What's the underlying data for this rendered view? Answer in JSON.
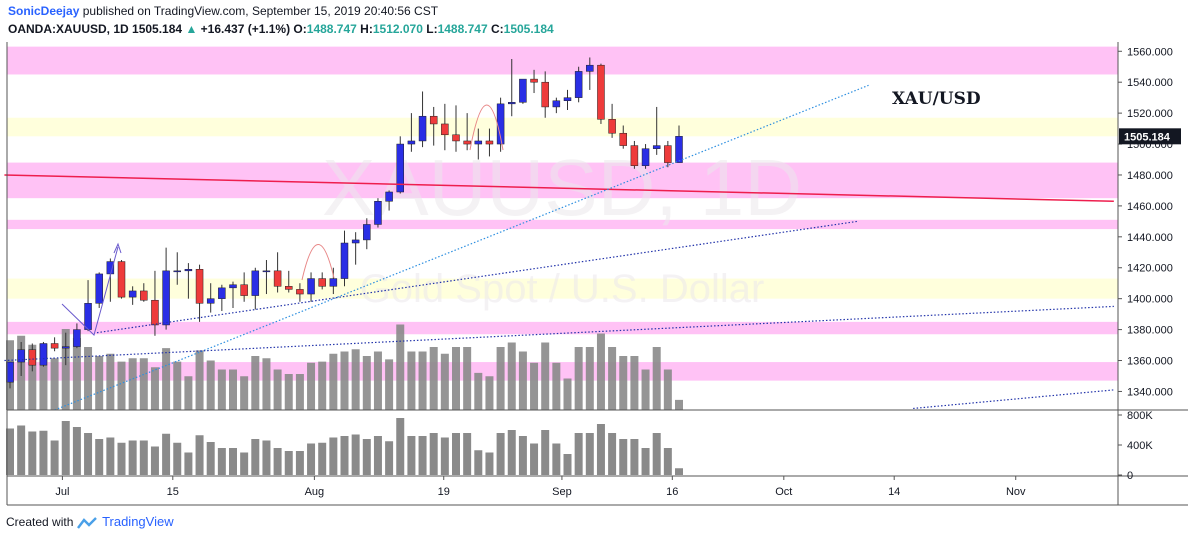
{
  "header": {
    "author": "SonicDeejay",
    "published": "published on TradingView.com, September 15, 2019 20:40:56 CST",
    "symbol": "OANDA:XAUUSD, 1D",
    "last": "1505.184",
    "change": "+16.437 (+1.1%)",
    "o_label": "O:",
    "o_value": "1488.747",
    "h_label": "H:",
    "h_value": "1512.070",
    "l_label": "L:",
    "l_value": "1488.747",
    "c_label": "C:",
    "c_value": "1505.184"
  },
  "footer": {
    "created_with": "Created with",
    "brand": "TradingView"
  },
  "chart_data": {
    "type": "candlestick",
    "title": "XAU/USD",
    "watermark_symbol": "XAUUSD, 1D",
    "watermark_name": "Gold Spot / U.S. Dollar",
    "current_price_label": "1505.184",
    "price_ticks": [
      "1560.000",
      "1540.000",
      "1520.000",
      "1500.000",
      "1480.000",
      "1460.000",
      "1440.000",
      "1420.000",
      "1400.000",
      "1380.000",
      "1360.000",
      "1340.000"
    ],
    "volume_ticks": [
      "800K",
      "400K",
      "0"
    ],
    "x_ticks": [
      {
        "label": "Jul",
        "i": 4.7
      },
      {
        "label": "15",
        "i": 14.6
      },
      {
        "label": "Aug",
        "i": 27.3
      },
      {
        "label": "19",
        "i": 38.9
      },
      {
        "label": "Sep",
        "i": 49.5
      },
      {
        "label": "16",
        "i": 59.4
      },
      {
        "label": "Oct",
        "i": 69.4
      },
      {
        "label": "14",
        "i": 79.3
      },
      {
        "label": "Nov",
        "i": 90.2
      }
    ],
    "ylim": [
      1328,
      1566
    ],
    "volume_max": 800000,
    "colors": {
      "up": "#2a2ee5",
      "down": "#ee3b3b",
      "volume": "#8a8a8a",
      "pink_zone": "#ffc2f5",
      "yellow_zone": "#ffffdc",
      "red_line": "#ee1e4e",
      "blue_dotted": "#2d8fe0",
      "navy_dotted": "#2233aa",
      "price_badge": "#131722"
    },
    "zones": [
      {
        "type": "pink",
        "from": 1545,
        "to": 1563
      },
      {
        "type": "yellow",
        "from": 1505,
        "to": 1517
      },
      {
        "type": "pink",
        "from": 1465,
        "to": 1488
      },
      {
        "type": "pink",
        "from": 1445,
        "to": 1451
      },
      {
        "type": "yellow",
        "from": 1400,
        "to": 1413
      },
      {
        "type": "pink",
        "from": 1377,
        "to": 1385
      },
      {
        "type": "pink",
        "from": 1347,
        "to": 1359
      }
    ],
    "trend_lines": [
      {
        "style": "solid",
        "color": "red",
        "from": {
          "i": -0.5,
          "p": 1480
        },
        "to": {
          "i": 99,
          "p": 1463
        }
      },
      {
        "style": "dotted",
        "color": "blue",
        "from": {
          "i": 4,
          "p": 1328
        },
        "to": {
          "i": 77,
          "p": 1538
        }
      },
      {
        "style": "dotted",
        "color": "navy",
        "from": {
          "i": 7.8,
          "p": 1378
        },
        "to": {
          "i": 76,
          "p": 1450
        }
      },
      {
        "style": "dotted",
        "color": "navy",
        "from": {
          "i": -0.5,
          "p": 1360
        },
        "to": {
          "i": 99,
          "p": 1395
        }
      },
      {
        "style": "dotted",
        "color": "navy",
        "from": {
          "i": 81,
          "p": 1329
        },
        "to": {
          "i": 99,
          "p": 1341
        }
      }
    ],
    "series": [
      {
        "date": "2019-06-24",
        "o": 1346,
        "h": 1359,
        "l": 1342,
        "c": 1359,
        "v": 620000
      },
      {
        "date": "2019-06-25",
        "o": 1359,
        "h": 1372,
        "l": 1350,
        "c": 1367,
        "v": 660000
      },
      {
        "date": "2019-06-26",
        "o": 1367,
        "h": 1371,
        "l": 1353,
        "c": 1357,
        "v": 580000
      },
      {
        "date": "2019-06-27",
        "o": 1357,
        "h": 1372,
        "l": 1356,
        "c": 1371,
        "v": 590000
      },
      {
        "date": "2019-06-28",
        "o": 1371,
        "h": 1375,
        "l": 1366,
        "c": 1368,
        "v": 460000
      },
      {
        "date": "2019-07-01",
        "o": 1368,
        "h": 1378,
        "l": 1357,
        "c": 1369,
        "v": 720000
      },
      {
        "date": "2019-07-02",
        "o": 1369,
        "h": 1384,
        "l": 1368,
        "c": 1380,
        "v": 640000
      },
      {
        "date": "2019-07-03",
        "o": 1380,
        "h": 1412,
        "l": 1379,
        "c": 1397,
        "v": 560000
      },
      {
        "date": "2019-07-04",
        "o": 1397,
        "h": 1417,
        "l": 1394,
        "c": 1416,
        "v": 480000
      },
      {
        "date": "2019-07-05",
        "o": 1416,
        "h": 1426,
        "l": 1398,
        "c": 1424,
        "v": 500000
      },
      {
        "date": "2019-07-08",
        "o": 1424,
        "h": 1425,
        "l": 1400,
        "c": 1401,
        "v": 430000
      },
      {
        "date": "2019-07-09",
        "o": 1401,
        "h": 1408,
        "l": 1396,
        "c": 1405,
        "v": 460000
      },
      {
        "date": "2019-07-10",
        "o": 1405,
        "h": 1410,
        "l": 1398,
        "c": 1399,
        "v": 460000
      },
      {
        "date": "2019-07-11",
        "o": 1399,
        "h": 1418,
        "l": 1376,
        "c": 1383,
        "v": 380000
      },
      {
        "date": "2019-07-12",
        "o": 1383,
        "h": 1433,
        "l": 1380,
        "c": 1418,
        "v": 550000
      },
      {
        "date": "2019-07-15",
        "o": 1418,
        "h": 1430,
        "l": 1409,
        "c": 1418,
        "v": 430000
      },
      {
        "date": "2019-07-16",
        "o": 1418,
        "h": 1423,
        "l": 1400,
        "c": 1419,
        "v": 300000
      },
      {
        "date": "2019-07-17",
        "o": 1419,
        "h": 1422,
        "l": 1385,
        "c": 1397,
        "v": 530000
      },
      {
        "date": "2019-07-18",
        "o": 1397,
        "h": 1410,
        "l": 1391,
        "c": 1400,
        "v": 440000
      },
      {
        "date": "2019-07-19",
        "o": 1400,
        "h": 1409,
        "l": 1392,
        "c": 1407,
        "v": 360000
      },
      {
        "date": "2019-07-22",
        "o": 1407,
        "h": 1411,
        "l": 1394,
        "c": 1409,
        "v": 360000
      },
      {
        "date": "2019-07-23",
        "o": 1409,
        "h": 1417,
        "l": 1398,
        "c": 1402,
        "v": 300000
      },
      {
        "date": "2019-07-24",
        "o": 1402,
        "h": 1420,
        "l": 1393,
        "c": 1418,
        "v": 480000
      },
      {
        "date": "2019-07-25",
        "o": 1418,
        "h": 1425,
        "l": 1403,
        "c": 1418,
        "v": 460000
      },
      {
        "date": "2019-07-26",
        "o": 1418,
        "h": 1430,
        "l": 1404,
        "c": 1408,
        "v": 360000
      },
      {
        "date": "2019-07-29",
        "o": 1408,
        "h": 1418,
        "l": 1404,
        "c": 1406,
        "v": 320000
      },
      {
        "date": "2019-07-30",
        "o": 1406,
        "h": 1410,
        "l": 1398,
        "c": 1403,
        "v": 320000
      },
      {
        "date": "2019-07-31",
        "o": 1403,
        "h": 1417,
        "l": 1398,
        "c": 1413,
        "v": 420000
      },
      {
        "date": "2019-08-01",
        "o": 1413,
        "h": 1417,
        "l": 1406,
        "c": 1408,
        "v": 430000
      },
      {
        "date": "2019-08-02",
        "o": 1408,
        "h": 1420,
        "l": 1403,
        "c": 1413,
        "v": 500000
      },
      {
        "date": "2019-08-05",
        "o": 1413,
        "h": 1444,
        "l": 1408,
        "c": 1436,
        "v": 520000
      },
      {
        "date": "2019-08-06",
        "o": 1436,
        "h": 1443,
        "l": 1422,
        "c": 1438,
        "v": 540000
      },
      {
        "date": "2019-08-07",
        "o": 1438,
        "h": 1452,
        "l": 1432,
        "c": 1448,
        "v": 480000
      },
      {
        "date": "2019-08-08",
        "o": 1448,
        "h": 1465,
        "l": 1446,
        "c": 1463,
        "v": 520000
      },
      {
        "date": "2019-08-09",
        "o": 1463,
        "h": 1470,
        "l": 1457,
        "c": 1469,
        "v": 450000
      },
      {
        "date": "2019-08-12",
        "o": 1469,
        "h": 1505,
        "l": 1468,
        "c": 1500,
        "v": 760000
      },
      {
        "date": "2019-08-13",
        "o": 1500,
        "h": 1520,
        "l": 1495,
        "c": 1502,
        "v": 520000
      },
      {
        "date": "2019-08-14",
        "o": 1502,
        "h": 1534,
        "l": 1498,
        "c": 1518,
        "v": 520000
      },
      {
        "date": "2019-08-15",
        "o": 1518,
        "h": 1524,
        "l": 1499,
        "c": 1513,
        "v": 560000
      },
      {
        "date": "2019-08-16",
        "o": 1513,
        "h": 1526,
        "l": 1496,
        "c": 1506,
        "v": 500000
      },
      {
        "date": "2019-08-19",
        "o": 1506,
        "h": 1525,
        "l": 1495,
        "c": 1502,
        "v": 560000
      },
      {
        "date": "2019-08-20",
        "o": 1502,
        "h": 1520,
        "l": 1496,
        "c": 1500,
        "v": 560000
      },
      {
        "date": "2019-08-21",
        "o": 1500,
        "h": 1510,
        "l": 1490,
        "c": 1502,
        "v": 330000
      },
      {
        "date": "2019-08-22",
        "o": 1502,
        "h": 1510,
        "l": 1492,
        "c": 1500,
        "v": 300000
      },
      {
        "date": "2019-08-23",
        "o": 1500,
        "h": 1530,
        "l": 1495,
        "c": 1526,
        "v": 560000
      },
      {
        "date": "2019-08-26",
        "o": 1526,
        "h": 1555,
        "l": 1518,
        "c": 1527,
        "v": 600000
      },
      {
        "date": "2019-08-27",
        "o": 1527,
        "h": 1540,
        "l": 1526,
        "c": 1542,
        "v": 520000
      },
      {
        "date": "2019-08-28",
        "o": 1542,
        "h": 1548,
        "l": 1533,
        "c": 1540,
        "v": 420000
      },
      {
        "date": "2019-08-29",
        "o": 1540,
        "h": 1547,
        "l": 1517,
        "c": 1524,
        "v": 600000
      },
      {
        "date": "2019-08-30",
        "o": 1524,
        "h": 1530,
        "l": 1520,
        "c": 1528,
        "v": 420000
      },
      {
        "date": "2019-09-02",
        "o": 1528,
        "h": 1535,
        "l": 1522,
        "c": 1530,
        "v": 280000
      },
      {
        "date": "2019-09-03",
        "o": 1530,
        "h": 1550,
        "l": 1527,
        "c": 1547,
        "v": 560000
      },
      {
        "date": "2019-09-04",
        "o": 1547,
        "h": 1556,
        "l": 1535,
        "c": 1551,
        "v": 560000
      },
      {
        "date": "2019-09-05",
        "o": 1551,
        "h": 1552,
        "l": 1513,
        "c": 1516,
        "v": 680000
      },
      {
        "date": "2019-09-06",
        "o": 1516,
        "h": 1526,
        "l": 1504,
        "c": 1507,
        "v": 560000
      },
      {
        "date": "2019-09-09",
        "o": 1507,
        "h": 1512,
        "l": 1497,
        "c": 1499,
        "v": 480000
      },
      {
        "date": "2019-09-10",
        "o": 1499,
        "h": 1502,
        "l": 1484,
        "c": 1486,
        "v": 480000
      },
      {
        "date": "2019-09-11",
        "o": 1486,
        "h": 1500,
        "l": 1484,
        "c": 1497,
        "v": 360000
      },
      {
        "date": "2019-09-12",
        "o": 1497,
        "h": 1524,
        "l": 1493,
        "c": 1499,
        "v": 560000
      },
      {
        "date": "2019-09-13",
        "o": 1499,
        "h": 1502,
        "l": 1485,
        "c": 1488,
        "v": 360000
      },
      {
        "date": "2019-09-16",
        "o": 1488,
        "h": 1512,
        "l": 1488,
        "c": 1505,
        "v": 90000
      }
    ]
  }
}
